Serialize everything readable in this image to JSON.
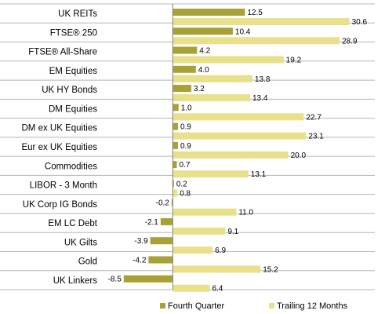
{
  "chart_data": {
    "type": "bar",
    "orientation": "horizontal",
    "categories": [
      "UK REITs",
      "FTSE® 250",
      "FTSE® All-Share",
      "EM Equities",
      "UK HY Bonds",
      "DM Equities",
      "DM ex UK Equities",
      "Eur ex UK Equities",
      "Commodities",
      "LIBOR - 3 Month",
      "UK Corp IG Bonds",
      "EM LC Debt",
      "UK Gilts",
      "Gold",
      "UK Linkers"
    ],
    "series": [
      {
        "name": "Fourth Quarter",
        "color": "#a8a135",
        "values": [
          12.5,
          10.4,
          4.2,
          4.0,
          3.2,
          1.0,
          0.9,
          0.9,
          0.7,
          0.2,
          -0.2,
          -2.1,
          -3.9,
          -4.2,
          -8.5
        ],
        "labels": [
          "12.5",
          "10.4",
          "4.2",
          "4.0",
          "3.2",
          "1.0",
          "0.9",
          "0.9",
          "0.7",
          "0.2",
          "-0.2",
          "-2.1",
          "-3.9",
          "-4.2",
          "-8.5"
        ]
      },
      {
        "name": "Trailing 12 Months",
        "color": "#e8e08a",
        "values": [
          30.6,
          28.9,
          19.2,
          13.8,
          13.4,
          22.7,
          23.1,
          20.0,
          13.1,
          0.8,
          11.0,
          9.1,
          6.9,
          15.2,
          6.4
        ],
        "labels": [
          "30.6",
          "28.9",
          "19.2",
          "13.8",
          "13.4",
          "22.7",
          "23.1",
          "20.0",
          "13.1",
          "0.8",
          "11.0",
          "9.1",
          "6.9",
          "15.2",
          "6.4"
        ]
      }
    ],
    "xlim": [
      -12,
      35
    ],
    "grid": false,
    "legend_position": "bottom"
  }
}
